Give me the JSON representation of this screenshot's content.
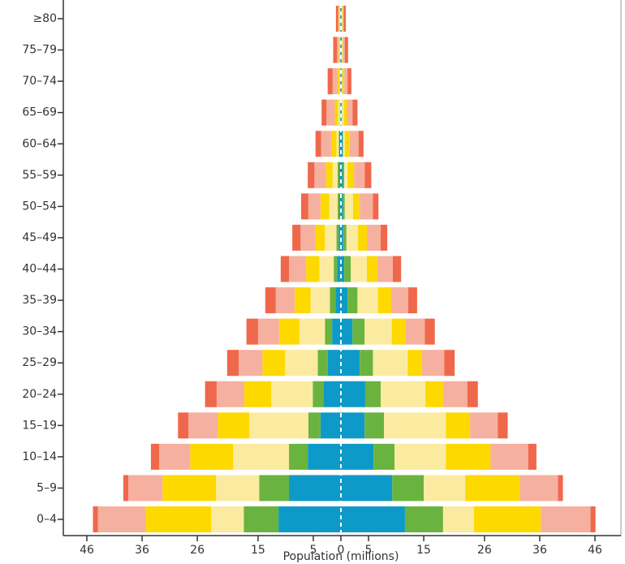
{
  "chart_data": {
    "type": "pyramid",
    "x_label": "Population (millions)",
    "categories": [
      "≥80",
      "75–79",
      "70–74",
      "65–69",
      "60–64",
      "55–59",
      "50–54",
      "45–49",
      "40–44",
      "35–39",
      "30–34",
      "25–29",
      "20–24",
      "15–19",
      "10–14",
      "5–9",
      "0–4"
    ],
    "xlim": [
      -46,
      46
    ],
    "xticks": [
      {
        "value": -46,
        "label": "46"
      },
      {
        "value": -36,
        "label": "36"
      },
      {
        "value": -26,
        "label": "26"
      },
      {
        "value": -15,
        "label": "15"
      },
      {
        "value": -5,
        "label": "5"
      },
      0,
      5,
      15,
      26,
      36,
      46
    ],
    "series": [
      {
        "color": "#0e9ac9",
        "values": [
          -0.1,
          -0.1,
          -0.1,
          -0.1,
          -0.3,
          -0.3,
          -0.3,
          -0.4,
          -0.7,
          -1.0,
          -1.6,
          -2.4,
          -3.2,
          -3.7,
          -6.0,
          -9.4,
          -11.3
        ]
      },
      {
        "color": "#6bb33f",
        "values": [
          -0.1,
          -0.1,
          -0.1,
          -0.1,
          -0.1,
          -0.3,
          -0.3,
          -0.4,
          -0.6,
          -1.0,
          -1.3,
          -1.8,
          -1.9,
          -2.2,
          -3.4,
          -5.4,
          -6.3
        ]
      },
      {
        "color": "#fbeba1",
        "values": [
          -0.1,
          -0.1,
          -0.1,
          -0.3,
          -0.4,
          -0.9,
          -1.5,
          -2.1,
          -2.6,
          -3.5,
          -4.6,
          -5.9,
          -7.5,
          -10.7,
          -10.1,
          -7.8,
          -5.9
        ]
      },
      {
        "color": "#fdd900",
        "values": [
          -0.1,
          -0.1,
          -0.3,
          -0.6,
          -0.9,
          -1.2,
          -1.6,
          -1.8,
          -2.4,
          -2.9,
          -3.7,
          -4.1,
          -4.9,
          -5.7,
          -7.8,
          -9.7,
          -11.8
        ]
      },
      {
        "color": "#f6b0a0",
        "values": [
          -0.1,
          -0.3,
          -0.9,
          -1.5,
          -1.9,
          -2.1,
          -2.2,
          -2.6,
          -3.1,
          -3.4,
          -3.8,
          -4.3,
          -5.0,
          -5.3,
          -5.6,
          -6.2,
          -8.7
        ]
      },
      {
        "color": "#f0684b",
        "values": [
          -0.4,
          -0.7,
          -0.9,
          -0.9,
          -1.0,
          -1.2,
          -1.3,
          -1.5,
          -1.5,
          -1.9,
          -2.1,
          -2.1,
          -2.1,
          -1.9,
          -1.5,
          -0.9,
          -0.9
        ]
      },
      {
        "color": "#0e9ac9",
        "values": [
          0.1,
          0.1,
          0.1,
          0.1,
          0.3,
          0.3,
          0.3,
          0.4,
          0.6,
          1.2,
          2.1,
          3.4,
          4.4,
          4.3,
          5.9,
          9.3,
          11.6
        ]
      },
      {
        "color": "#6bb33f",
        "values": [
          0.1,
          0.1,
          0.1,
          0.1,
          0.1,
          0.3,
          0.4,
          0.6,
          1.2,
          1.8,
          2.2,
          2.4,
          2.8,
          3.5,
          3.8,
          5.7,
          6.9
        ]
      },
      {
        "color": "#fbeba1",
        "values": [
          0.1,
          0.1,
          0.1,
          0.3,
          0.3,
          0.6,
          1.5,
          2.1,
          2.9,
          3.7,
          4.9,
          6.3,
          8.1,
          11.2,
          9.3,
          7.5,
          5.6
        ]
      },
      {
        "color": "#fdd900",
        "values": [
          0.1,
          0.1,
          0.3,
          0.6,
          0.9,
          1.2,
          1.2,
          1.6,
          1.9,
          2.4,
          2.5,
          2.6,
          3.2,
          4.4,
          8.1,
          9.9,
          12.1
        ]
      },
      {
        "color": "#f6b0a0",
        "values": [
          0.1,
          0.3,
          0.6,
          1.0,
          1.6,
          1.9,
          2.4,
          2.5,
          2.8,
          3.1,
          3.5,
          4.0,
          4.4,
          5.0,
          6.8,
          6.9,
          9.0
        ]
      },
      {
        "color": "#f0684b",
        "values": [
          0.4,
          0.6,
          0.7,
          0.9,
          0.9,
          1.2,
          1.0,
          1.2,
          1.5,
          1.6,
          1.8,
          1.9,
          1.9,
          1.8,
          1.5,
          0.9,
          0.9
        ]
      }
    ]
  }
}
